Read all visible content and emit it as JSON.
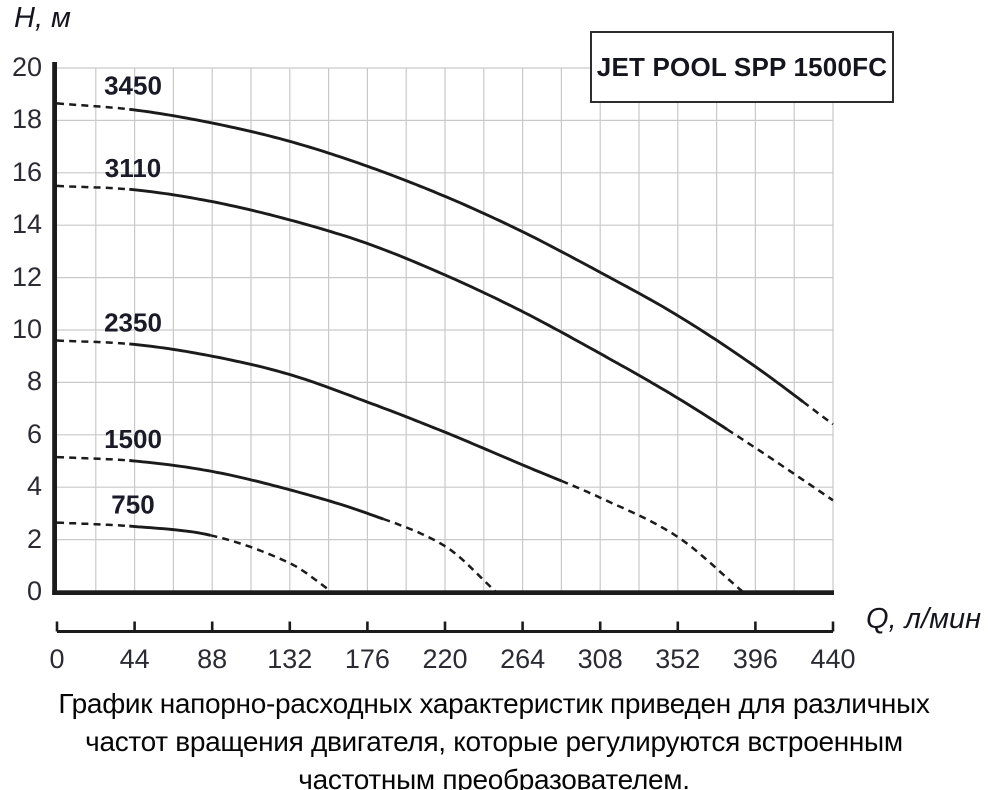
{
  "title_box": {
    "label": "JET POOL SPP 1500FC"
  },
  "axes": {
    "y_label": "H, м",
    "x_label": "Q, л/мин",
    "y_ticks": [
      "20",
      "18",
      "16",
      "14",
      "12",
      "10",
      "8",
      "6",
      "4",
      "2",
      "0"
    ],
    "x_ticks": [
      "0",
      "44",
      "88",
      "132",
      "176",
      "220",
      "264",
      "308",
      "352",
      "396",
      "440"
    ]
  },
  "caption": {
    "line1": "График напорно-расходных характеристик приведен для различных",
    "line2": "частот вращения двигателя, которые регулируются встроенным",
    "line3": "частотным преобразователем."
  },
  "colors": {
    "curve": "#1b1b1b",
    "grid": "#c9c9c9",
    "axis": "#1b1b1b",
    "series_label": "#1a1a28",
    "tick_text": "#2b2b35",
    "title_text": "#15151f",
    "box_border": "#2d2d2d",
    "caption_text": "#060606"
  },
  "chart_data": {
    "type": "line",
    "title": "JET POOL SPP 1500FC",
    "xlabel": "Q, л/мин",
    "ylabel": "H, м",
    "xlim": [
      0,
      440
    ],
    "ylim": [
      0,
      20
    ],
    "x_tick_step": 44,
    "x_grid_step": 22,
    "y_tick_step": 2,
    "grid": true,
    "legend_position": "inline-labels",
    "series": [
      {
        "name": "3450",
        "points": [
          [
            0,
            18.65
          ],
          [
            44,
            18.4
          ],
          [
            88,
            17.9
          ],
          [
            132,
            17.2
          ],
          [
            176,
            16.25
          ],
          [
            220,
            15.1
          ],
          [
            264,
            13.75
          ],
          [
            308,
            12.2
          ],
          [
            352,
            10.55
          ],
          [
            396,
            8.6
          ],
          [
            440,
            6.4
          ]
        ],
        "solid_range": [
          41,
          423
        ]
      },
      {
        "name": "3110",
        "points": [
          [
            0,
            15.5
          ],
          [
            44,
            15.35
          ],
          [
            88,
            14.9
          ],
          [
            132,
            14.2
          ],
          [
            176,
            13.3
          ],
          [
            220,
            12.1
          ],
          [
            264,
            10.7
          ],
          [
            308,
            9.1
          ],
          [
            352,
            7.4
          ],
          [
            396,
            5.5
          ],
          [
            440,
            3.5
          ]
        ],
        "solid_range": [
          41,
          380
        ]
      },
      {
        "name": "2350",
        "points": [
          [
            0,
            9.6
          ],
          [
            44,
            9.45
          ],
          [
            88,
            9.0
          ],
          [
            132,
            8.3
          ],
          [
            176,
            7.25
          ],
          [
            220,
            6.1
          ],
          [
            264,
            4.85
          ],
          [
            308,
            3.6
          ],
          [
            352,
            2.1
          ],
          [
            389,
            0
          ]
        ],
        "solid_range": [
          41,
          286
        ]
      },
      {
        "name": "1500",
        "points": [
          [
            0,
            5.15
          ],
          [
            44,
            5.0
          ],
          [
            88,
            4.6
          ],
          [
            132,
            3.9
          ],
          [
            176,
            3.0
          ],
          [
            220,
            1.75
          ],
          [
            249,
            0
          ]
        ],
        "solid_range": [
          41,
          185
        ]
      },
      {
        "name": "750",
        "points": [
          [
            0,
            2.65
          ],
          [
            44,
            2.5
          ],
          [
            88,
            2.15
          ],
          [
            132,
            1.1
          ],
          [
            156,
            0
          ]
        ],
        "solid_range": [
          41,
          87
        ]
      }
    ]
  }
}
